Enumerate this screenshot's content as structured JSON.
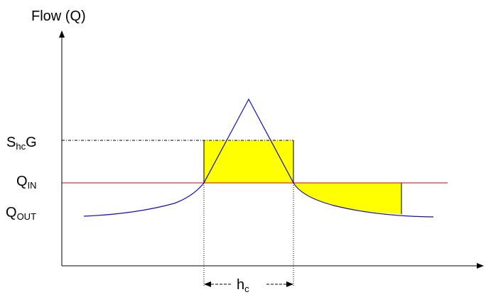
{
  "y_axis_label": "Flow (Q)",
  "levels": [
    {
      "main": "S",
      "sub": "hc",
      "suffix": "G"
    },
    {
      "main": "Q",
      "sub": "IN"
    },
    {
      "main": "Q",
      "sub": "OUT"
    }
  ],
  "interval": {
    "main": "h",
    "sub": "c"
  }
}
